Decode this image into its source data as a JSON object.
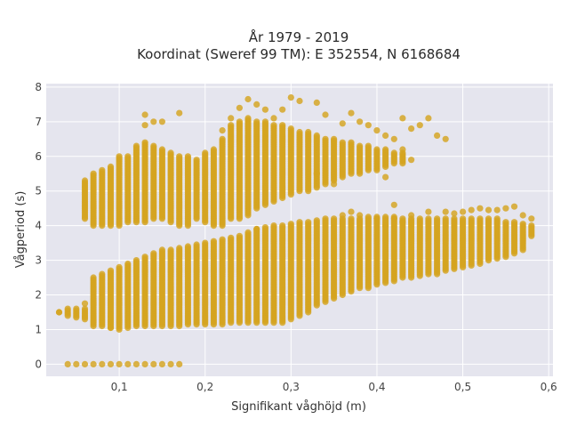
{
  "chart_data": {
    "type": "scatter",
    "title": "År 1979 - 2019",
    "subtitle": "Koordinat (Sweref 99 TM): E 352554, N 6168684",
    "xlabel": "Signifikant våghöjd (m)",
    "ylabel": "Vågperiod (s)",
    "xlim": [
      0.015,
      0.605
    ],
    "ylim": [
      -0.35,
      8.1
    ],
    "x_ticks": [
      0.1,
      0.2,
      0.3,
      0.4,
      0.5,
      0.6
    ],
    "x_tick_labels": [
      "0,1",
      "0,2",
      "0,3",
      "0,4",
      "0,5",
      "0,6"
    ],
    "y_ticks": [
      0,
      1,
      2,
      3,
      4,
      5,
      6,
      7,
      8
    ],
    "y_tick_labels": [
      "0",
      "1",
      "2",
      "3",
      "4",
      "5",
      "6",
      "7",
      "8"
    ],
    "grid": true,
    "legend": "none",
    "colors": {
      "marker": "#d4a420",
      "plot_bg": "#e5e5ee",
      "grid": "#ffffff"
    },
    "x_step": 0.01,
    "clusters": [
      {
        "description": "lower band",
        "x": [
          0.03,
          0.04,
          0.05,
          0.06,
          0.07,
          0.08,
          0.09,
          0.1,
          0.11,
          0.12,
          0.13,
          0.14,
          0.15,
          0.16,
          0.17,
          0.18,
          0.19,
          0.2,
          0.21,
          0.22,
          0.23,
          0.24,
          0.25,
          0.26,
          0.27,
          0.28,
          0.29,
          0.3,
          0.31,
          0.32,
          0.33,
          0.34,
          0.35,
          0.36,
          0.37,
          0.38,
          0.39,
          0.4,
          0.41,
          0.42,
          0.43,
          0.44,
          0.45,
          0.46,
          0.47,
          0.48,
          0.49,
          0.5,
          0.51,
          0.52,
          0.53,
          0.54,
          0.55,
          0.56,
          0.57,
          0.58
        ],
        "y_min": [
          1.5,
          1.4,
          1.35,
          1.3,
          1.1,
          1.1,
          1.05,
          1.05,
          1.05,
          1.1,
          1.1,
          1.1,
          1.1,
          1.1,
          1.1,
          1.15,
          1.15,
          1.15,
          1.15,
          1.15,
          1.2,
          1.2,
          1.2,
          1.2,
          1.2,
          1.2,
          1.2,
          1.3,
          1.4,
          1.5,
          1.7,
          1.8,
          1.9,
          2.0,
          2.1,
          2.2,
          2.2,
          2.3,
          2.35,
          2.4,
          2.5,
          2.5,
          2.55,
          2.6,
          2.6,
          2.7,
          2.75,
          2.8,
          2.85,
          2.9,
          3.0,
          3.05,
          3.1,
          3.2,
          3.3,
          3.7
        ],
        "y_max": [
          1.5,
          1.6,
          1.6,
          1.6,
          2.5,
          2.6,
          2.7,
          2.8,
          2.9,
          3.0,
          3.1,
          3.2,
          3.3,
          3.3,
          3.35,
          3.4,
          3.45,
          3.5,
          3.55,
          3.6,
          3.65,
          3.7,
          3.8,
          3.9,
          3.95,
          4.0,
          4.0,
          4.05,
          4.1,
          4.1,
          4.15,
          4.2,
          4.2,
          4.2,
          4.2,
          4.2,
          4.25,
          4.25,
          4.25,
          4.25,
          4.2,
          4.2,
          4.2,
          4.2,
          4.2,
          4.2,
          4.2,
          4.2,
          4.2,
          4.2,
          4.2,
          4.2,
          4.1,
          4.1,
          4.05,
          4.0
        ]
      },
      {
        "description": "upper band",
        "x": [
          0.06,
          0.07,
          0.08,
          0.09,
          0.1,
          0.11,
          0.12,
          0.13,
          0.14,
          0.15,
          0.16,
          0.17,
          0.18,
          0.19,
          0.2,
          0.21,
          0.22,
          0.23,
          0.24,
          0.25,
          0.26,
          0.27,
          0.28,
          0.29,
          0.3,
          0.31,
          0.32,
          0.33,
          0.34,
          0.35,
          0.36,
          0.37,
          0.38,
          0.39,
          0.4,
          0.41,
          0.42,
          0.43
        ],
        "y_min": [
          4.2,
          4.0,
          4.0,
          4.0,
          4.0,
          4.1,
          4.1,
          4.1,
          4.2,
          4.2,
          4.1,
          4.0,
          4.0,
          4.2,
          4.1,
          4.0,
          4.0,
          4.2,
          4.2,
          4.3,
          4.5,
          4.6,
          4.7,
          4.8,
          4.9,
          5.0,
          5.0,
          5.1,
          5.2,
          5.3,
          5.4,
          5.5,
          5.5,
          5.6,
          5.6,
          5.7,
          5.8,
          5.8
        ],
        "y_max": [
          5.3,
          5.5,
          5.6,
          5.7,
          6.0,
          6.0,
          6.3,
          6.4,
          6.3,
          6.2,
          6.1,
          6.0,
          6.0,
          5.9,
          6.1,
          6.2,
          6.5,
          6.9,
          7.0,
          7.1,
          7.0,
          7.0,
          6.9,
          6.9,
          6.8,
          6.7,
          6.7,
          6.6,
          6.5,
          6.5,
          6.4,
          6.4,
          6.3,
          6.3,
          6.2,
          6.2,
          6.1,
          6.1
        ]
      }
    ],
    "zero_row": {
      "y": 0,
      "x": [
        0.04,
        0.05,
        0.06,
        0.07,
        0.08,
        0.09,
        0.1,
        0.11,
        0.12,
        0.13,
        0.14,
        0.15,
        0.16,
        0.17
      ]
    },
    "outliers": [
      [
        0.03,
        1.5
      ],
      [
        0.13,
        7.2
      ],
      [
        0.13,
        6.9
      ],
      [
        0.14,
        7.0
      ],
      [
        0.15,
        7.0
      ],
      [
        0.17,
        7.25
      ],
      [
        0.22,
        6.75
      ],
      [
        0.23,
        7.1
      ],
      [
        0.24,
        7.4
      ],
      [
        0.25,
        7.65
      ],
      [
        0.26,
        7.5
      ],
      [
        0.27,
        7.35
      ],
      [
        0.28,
        7.1
      ],
      [
        0.29,
        7.35
      ],
      [
        0.3,
        7.7
      ],
      [
        0.31,
        7.6
      ],
      [
        0.33,
        7.55
      ],
      [
        0.34,
        7.2
      ],
      [
        0.36,
        6.95
      ],
      [
        0.37,
        7.25
      ],
      [
        0.38,
        7.0
      ],
      [
        0.39,
        6.9
      ],
      [
        0.4,
        6.75
      ],
      [
        0.41,
        6.6
      ],
      [
        0.42,
        6.5
      ],
      [
        0.43,
        7.1
      ],
      [
        0.44,
        6.8
      ],
      [
        0.45,
        6.9
      ],
      [
        0.46,
        7.1
      ],
      [
        0.47,
        6.6
      ],
      [
        0.48,
        6.5
      ],
      [
        0.43,
        6.2
      ],
      [
        0.44,
        5.9
      ],
      [
        0.36,
        4.3
      ],
      [
        0.37,
        4.4
      ],
      [
        0.38,
        4.3
      ],
      [
        0.4,
        4.2
      ],
      [
        0.41,
        4.0
      ],
      [
        0.42,
        4.2
      ],
      [
        0.43,
        4.1
      ],
      [
        0.44,
        4.3
      ],
      [
        0.46,
        4.4
      ],
      [
        0.48,
        4.4
      ],
      [
        0.49,
        4.35
      ],
      [
        0.5,
        4.4
      ],
      [
        0.51,
        4.45
      ],
      [
        0.52,
        4.5
      ],
      [
        0.53,
        4.45
      ],
      [
        0.54,
        4.45
      ],
      [
        0.55,
        4.5
      ],
      [
        0.56,
        4.55
      ],
      [
        0.57,
        4.3
      ],
      [
        0.58,
        4.2
      ],
      [
        0.06,
        1.75
      ],
      [
        0.09,
        1.05
      ],
      [
        0.1,
        1.0
      ],
      [
        0.26,
        3.9
      ],
      [
        0.33,
        5.5
      ],
      [
        0.35,
        5.2
      ],
      [
        0.41,
        5.4
      ],
      [
        0.42,
        4.6
      ]
    ]
  }
}
